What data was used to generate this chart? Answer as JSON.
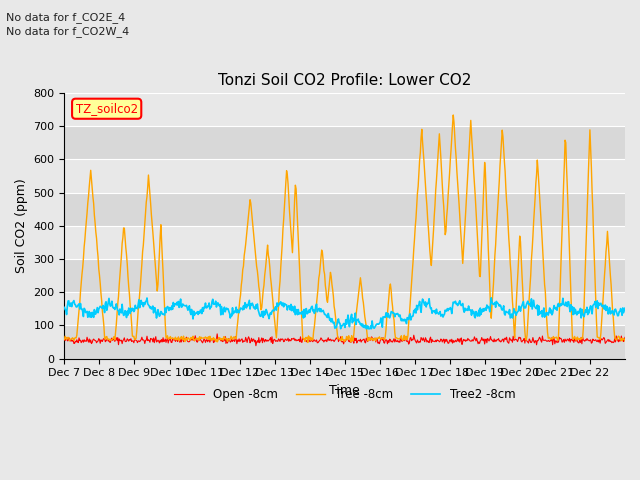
{
  "title": "Tonzi Soil CO2 Profile: Lower CO2",
  "xlabel": "Time",
  "ylabel": "Soil CO2 (ppm)",
  "ylim": [
    0,
    800
  ],
  "yticks": [
    0,
    100,
    200,
    300,
    400,
    500,
    600,
    700,
    800
  ],
  "annotations": [
    "No data for f_CO2E_4",
    "No data for f_CO2W_4"
  ],
  "legend_label": "TZ_soilco2",
  "series_labels": [
    "Open -8cm",
    "Tree -8cm",
    "Tree2 -8cm"
  ],
  "series_colors": [
    "#ff0000",
    "#ffa500",
    "#00ccff"
  ],
  "bg_light": "#e8e8e8",
  "bg_dark": "#d8d8d8",
  "title_fontsize": 11,
  "axis_fontsize": 9,
  "tick_fontsize": 8,
  "figsize": [
    6.4,
    4.8
  ],
  "dpi": 100,
  "n_days": 16,
  "xtick_days": [
    7,
    8,
    9,
    10,
    11,
    12,
    13,
    14,
    15,
    16,
    17,
    18,
    19,
    20,
    21,
    22
  ],
  "open_base": 55,
  "tree2_base": 150
}
